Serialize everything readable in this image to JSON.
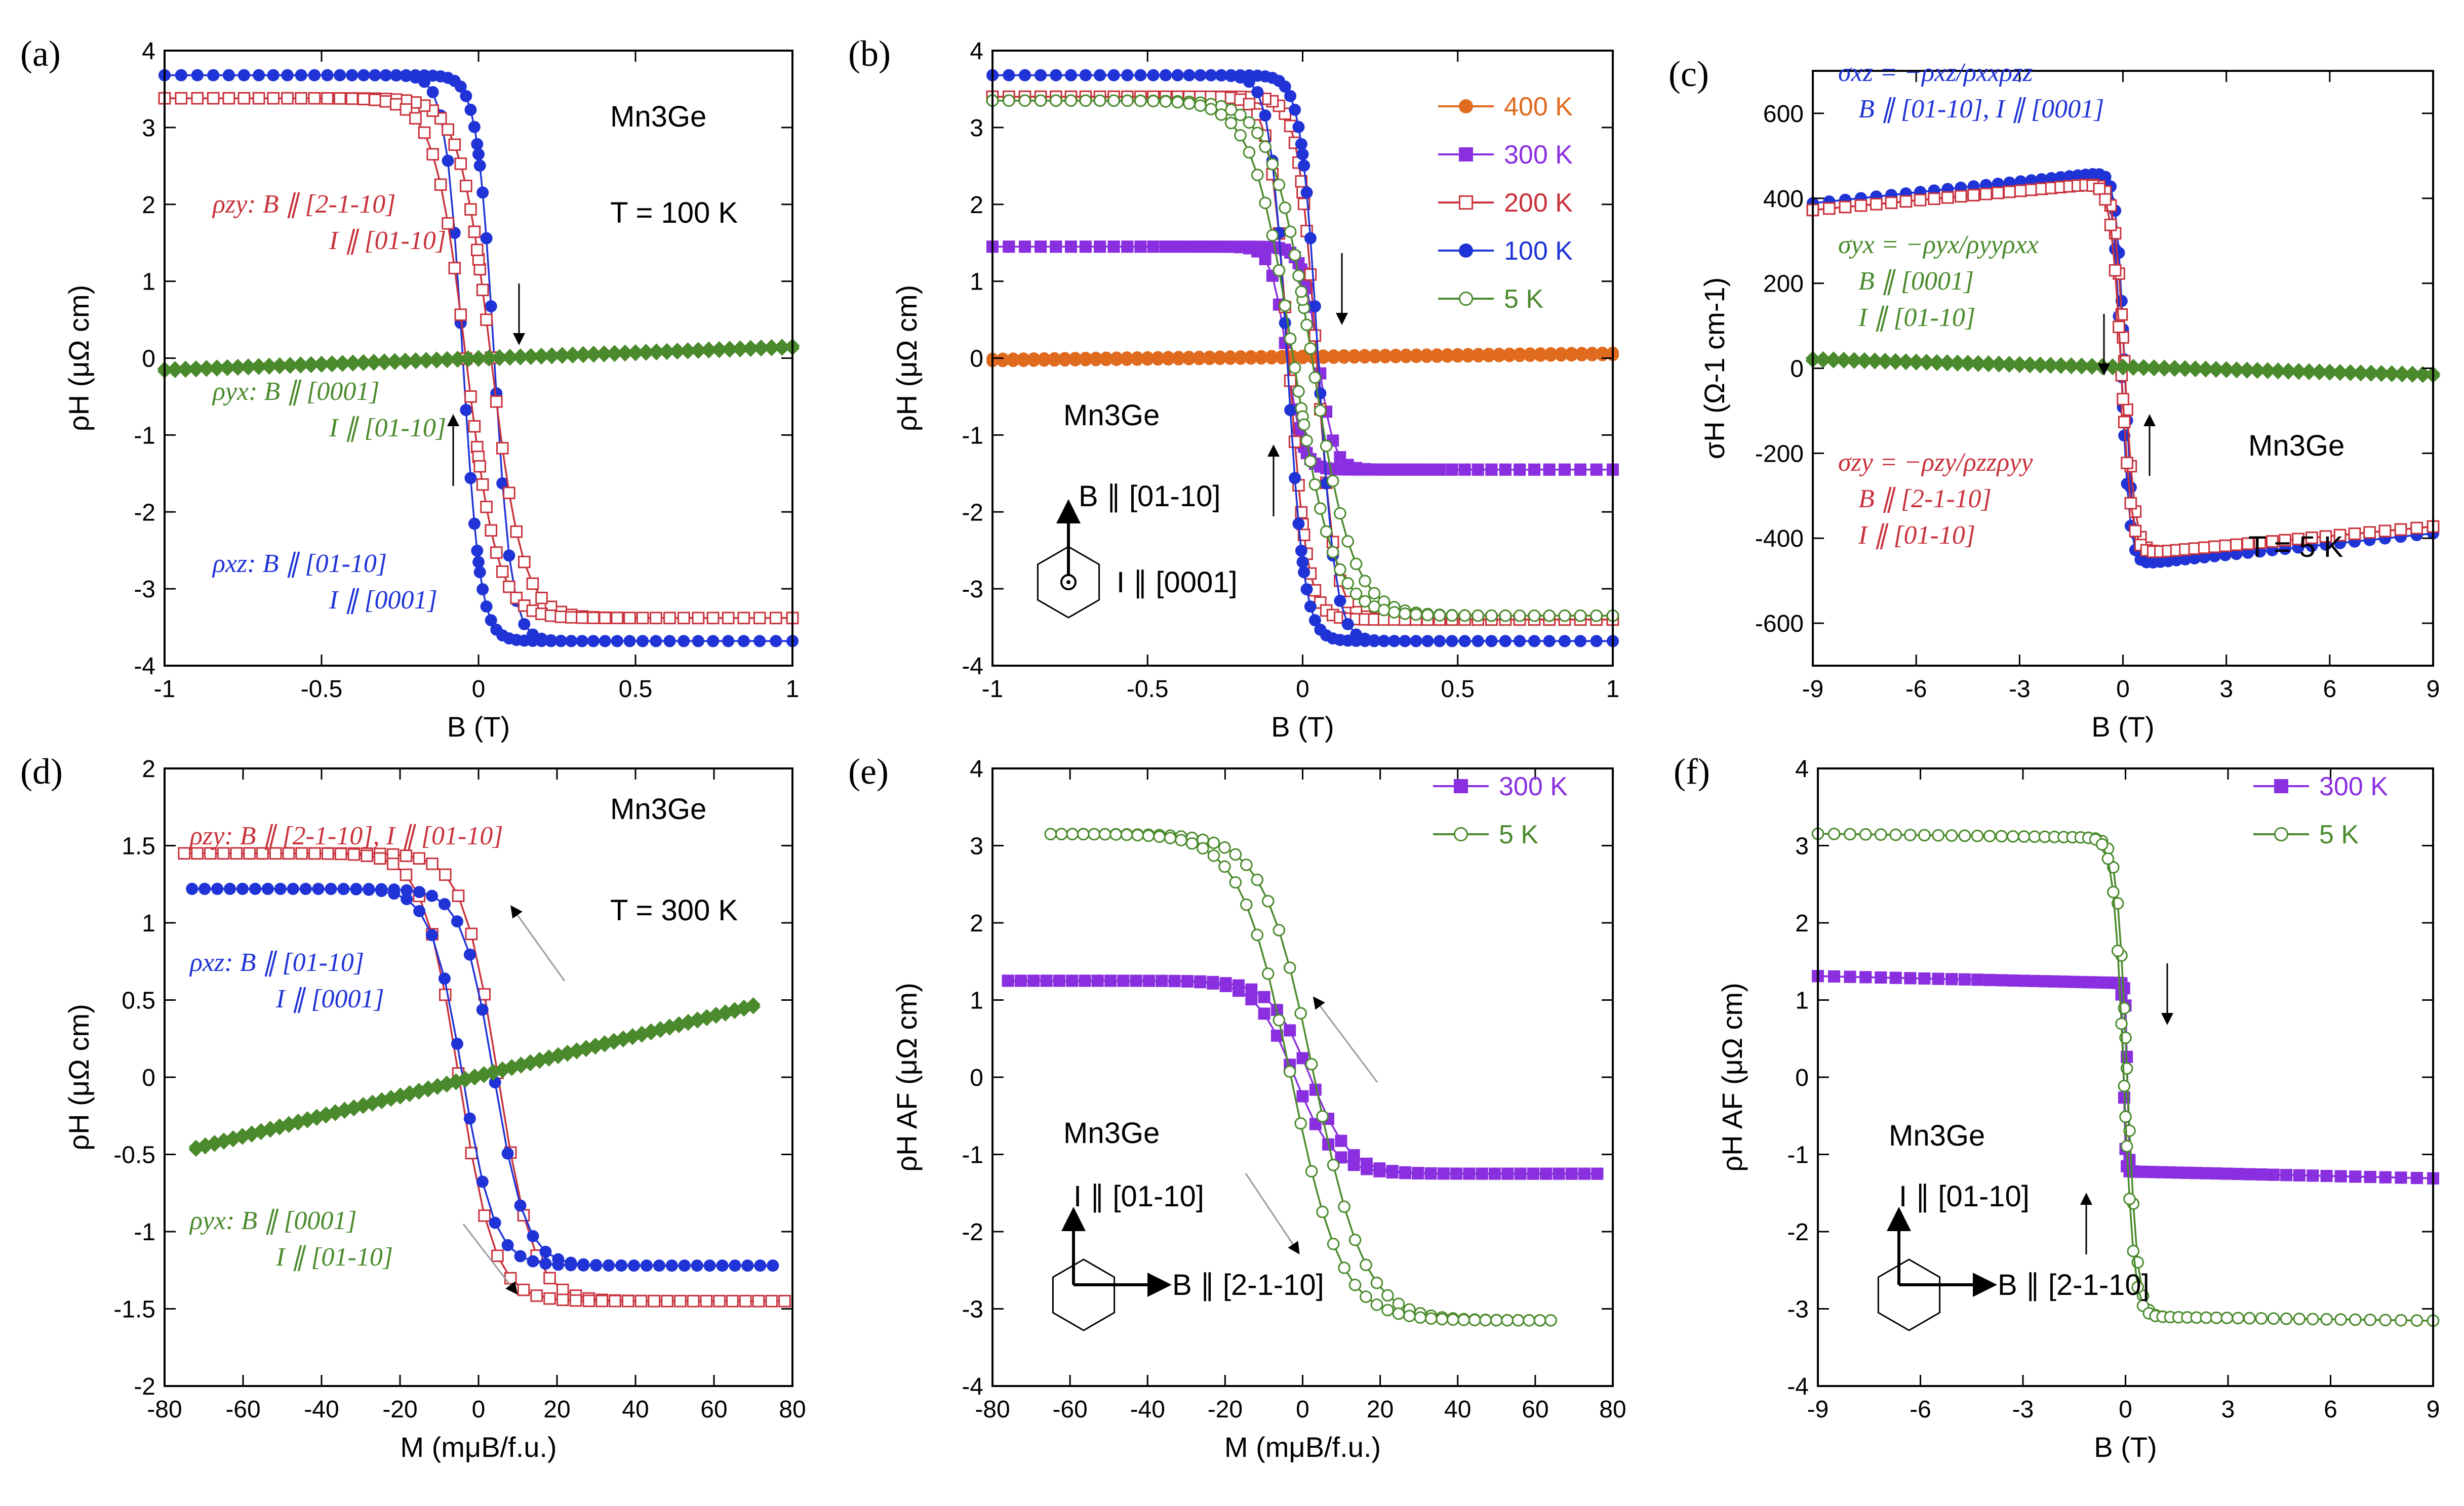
{
  "colors": {
    "red": "#c8323c",
    "blue": "#1f33d6",
    "green": "#4a8a2c",
    "orange": "#e06a1e",
    "purple": "#8a2fe0",
    "arrow": "#9a9a9a"
  },
  "chart_data": [
    {
      "id": "a",
      "type": "line",
      "panel_label": "(a)",
      "xlabel": "B (T)",
      "ylabel": "ρH (μΩ cm)",
      "xlim": [
        -1,
        1
      ],
      "ylim": [
        -4,
        4
      ],
      "xticks": [
        "-1",
        "-0.5",
        "0",
        "0.5",
        "1"
      ],
      "yticks": [
        "-4",
        "-3",
        "-2",
        "-1",
        "0",
        "1",
        "2",
        "3",
        "4"
      ],
      "material": "Mn3Ge",
      "temperature": "T = 100 K",
      "annotations": [
        {
          "lines": [
            "ρzy: B ∥ [2-1-10]",
            "I ∥ [01-10]"
          ],
          "color": "red"
        },
        {
          "lines": [
            "ρyx: B ∥ [0001]",
            "I ∥ [01-10]"
          ],
          "color": "green"
        },
        {
          "lines": [
            "ρxz: B ∥ [01-10]",
            "I ∥ [0001]"
          ],
          "color": "blue"
        }
      ],
      "series": [
        {
          "name": "ρxz",
          "color": "blue",
          "marker": "filled-circle",
          "shape": "loop",
          "sat": 3.68,
          "coercive": 0.05,
          "width": 0.055,
          "offset": 0,
          "slope": 0
        },
        {
          "name": "ρzy",
          "color": "red",
          "marker": "open-square",
          "shape": "loop",
          "sat": 3.38,
          "coercive": 0.04,
          "width": 0.1,
          "offset": 0,
          "slope": 0
        },
        {
          "name": "ρyx",
          "color": "green",
          "marker": "filled-diamond",
          "shape": "linear",
          "slope": 0.15,
          "offset": -0.02
        }
      ]
    },
    {
      "id": "b",
      "type": "line",
      "panel_label": "(b)",
      "xlabel": "B (T)",
      "ylabel": "ρH (μΩ cm)",
      "xlim": [
        -1,
        1
      ],
      "ylim": [
        -4,
        4
      ],
      "xticks": [
        "-1",
        "-0.5",
        "0",
        "0.5",
        "1"
      ],
      "yticks": [
        "-4",
        "-3",
        "-2",
        "-1",
        "0",
        "1",
        "2",
        "3",
        "4"
      ],
      "material": "Mn3Ge",
      "geometry": {
        "up": "B ∥ [01-10]",
        "side": "I ∥ [0001]"
      },
      "legend": [
        "400 K",
        "300 K",
        "200 K",
        "100 K",
        "5 K"
      ],
      "series": [
        {
          "name": "400 K",
          "color": "orange",
          "marker": "filled-circle",
          "shape": "linear",
          "slope": 0.04,
          "offset": 0
        },
        {
          "name": "300 K",
          "color": "purple",
          "marker": "filled-square",
          "shape": "loop",
          "sat": 1.45,
          "coercive": 0.05,
          "width": 0.05,
          "offset": 0,
          "slope": 0
        },
        {
          "name": "200 K",
          "color": "red",
          "marker": "open-square",
          "shape": "loop",
          "sat": 3.4,
          "coercive": 0.045,
          "width": 0.06,
          "offset": 0,
          "slope": 0
        },
        {
          "name": "100 K",
          "color": "blue",
          "marker": "filled-circle",
          "shape": "loop",
          "sat": 3.68,
          "coercive": 0.05,
          "width": 0.055,
          "offset": 0,
          "slope": 0
        },
        {
          "name": "5 K",
          "color": "green",
          "marker": "open-circle",
          "shape": "loop",
          "sat": 3.35,
          "coercive": 0.03,
          "width": 0.13,
          "offset": 0,
          "slope": 0
        }
      ]
    },
    {
      "id": "c",
      "type": "line",
      "panel_label": "(c)",
      "xlabel": "B (T)",
      "ylabel": "σH (Ω-1 cm-1)",
      "xlim": [
        -9,
        9
      ],
      "ylim": [
        -700,
        700
      ],
      "xticks": [
        "-9",
        "-6",
        "-3",
        "0",
        "3",
        "6",
        "9"
      ],
      "yticks": [
        "-600",
        "-400",
        "-200",
        "0",
        "200",
        "400",
        "600"
      ],
      "material": "Mn3Ge",
      "temperature": "T = 5 K",
      "annotations": [
        {
          "lines": [
            "σxz = −ρxz/ρxxρzz",
            "B ∥ [01-10], I ∥ [0001]"
          ],
          "color": "blue"
        },
        {
          "lines": [
            "σyx = −ρyx/ρyyρxx",
            "B ∥ [0001]",
            "I ∥ [01-10]"
          ],
          "color": "green"
        },
        {
          "lines": [
            "σzy = −ρzy/ρzzρyy",
            "B ∥ [2-1-10]",
            "I ∥ [01-10]"
          ],
          "color": "red"
        }
      ],
      "series": [
        {
          "name": "σxz",
          "color": "blue",
          "marker": "filled-circle",
          "shape": "loop",
          "sat": 465,
          "coercive": 0.05,
          "width": 0.25,
          "offset": 0,
          "slope": 8.5
        },
        {
          "name": "σzy",
          "color": "red",
          "marker": "open-square",
          "shape": "loop",
          "sat": 440,
          "coercive": 0.05,
          "width": 0.3,
          "offset": 0,
          "slope": 7.5
        },
        {
          "name": "σyx",
          "color": "green",
          "marker": "filled-diamond",
          "shape": "linear",
          "slope": -2.0,
          "offset": 0
        }
      ]
    },
    {
      "id": "d",
      "type": "line",
      "panel_label": "(d)",
      "xlabel": "M (mμB/f.u.)",
      "ylabel": "ρH (μΩ cm)",
      "xlim": [
        -80,
        80
      ],
      "ylim": [
        -2,
        2
      ],
      "xticks": [
        "-80",
        "-60",
        "-40",
        "-20",
        "0",
        "20",
        "40",
        "60",
        "80"
      ],
      "yticks": [
        "-2",
        "-1.5",
        "-1",
        "-0.5",
        "0",
        "0.5",
        "1",
        "1.5",
        "2"
      ],
      "material": "Mn3Ge",
      "temperature": "T = 300 K",
      "annotations": [
        {
          "lines": [
            "ρzy: B ∥ [2-1-10], I ∥ [01-10]"
          ],
          "color": "red"
        },
        {
          "lines": [
            "ρxz: B ∥ [01-10]",
            "I ∥ [0001]"
          ],
          "color": "blue"
        },
        {
          "lines": [
            "ρyx: B ∥ [0001]",
            "I ∥ [01-10]"
          ],
          "color": "green"
        }
      ],
      "series": [
        {
          "name": "ρzy",
          "color": "red",
          "marker": "open-square",
          "shape": "smooth",
          "sat": 1.45,
          "coercive": 5,
          "width": 9,
          "xmin": -75,
          "xmax": 78,
          "offset": 0,
          "slope": 0
        },
        {
          "name": "ρxz",
          "color": "blue",
          "marker": "filled-circle",
          "shape": "smooth",
          "sat": 1.22,
          "coercive": 4,
          "width": 8,
          "xmin": -73,
          "xmax": 75,
          "offset": 0,
          "slope": 0
        },
        {
          "name": "ρyx",
          "color": "green",
          "marker": "filled-diamond",
          "shape": "linear",
          "slope": 0.0065,
          "offset": 0,
          "xmin": -72,
          "xmax": 70
        }
      ]
    },
    {
      "id": "e",
      "type": "line",
      "panel_label": "(e)",
      "xlabel": "M (mμB/f.u.)",
      "ylabel": "ρH AF (μΩ cm)",
      "xlim": [
        -80,
        80
      ],
      "ylim": [
        -4,
        4
      ],
      "xticks": [
        "-80",
        "-60",
        "-40",
        "-20",
        "0",
        "20",
        "40",
        "60",
        "80"
      ],
      "yticks": [
        "-4",
        "-3",
        "-2",
        "-1",
        "0",
        "1",
        "2",
        "3",
        "4"
      ],
      "material": "Mn3Ge",
      "geometry": {
        "up": "I ∥ [01-10]",
        "side": "B ∥ [2-1-10]"
      },
      "legend": [
        "300 K",
        "5 K"
      ],
      "series": [
        {
          "name": "300 K",
          "color": "purple",
          "marker": "filled-square",
          "shape": "smooth",
          "sat": 1.25,
          "coercive": 2,
          "width": 10,
          "xmin": -76,
          "xmax": 76,
          "offset": 0,
          "slope": 0
        },
        {
          "name": "5 K",
          "color": "green",
          "marker": "open-circle",
          "shape": "smooth",
          "sat": 3.15,
          "coercive": 3,
          "width": 13,
          "xmin": -65,
          "xmax": 64,
          "offset": 0,
          "slope": 0
        }
      ]
    },
    {
      "id": "f",
      "type": "line",
      "panel_label": "(f)",
      "xlabel": "B (T)",
      "ylabel": "ρH AF (μΩ cm)",
      "xlim": [
        -9,
        9
      ],
      "ylim": [
        -4,
        4
      ],
      "xticks": [
        "-9",
        "-6",
        "-3",
        "0",
        "3",
        "6",
        "9"
      ],
      "yticks": [
        "-4",
        "-3",
        "-2",
        "-1",
        "0",
        "1",
        "2",
        "3",
        "4"
      ],
      "material": "Mn3Ge",
      "geometry": {
        "up": "I ∥ [01-10]",
        "side": "B ∥ [2-1-10]"
      },
      "legend": [
        "300 K",
        "5 K"
      ],
      "series": [
        {
          "name": "300 K",
          "color": "purple",
          "marker": "filled-square",
          "shape": "loop",
          "sat": 1.22,
          "coercive": 0.05,
          "width": 0.05,
          "offset": 0,
          "slope": -0.01
        },
        {
          "name": "5 K",
          "color": "green",
          "marker": "open-circle",
          "shape": "loop",
          "sat": 3.1,
          "coercive": 0.05,
          "width": 0.3,
          "offset": 0,
          "slope": -0.006
        }
      ]
    }
  ]
}
